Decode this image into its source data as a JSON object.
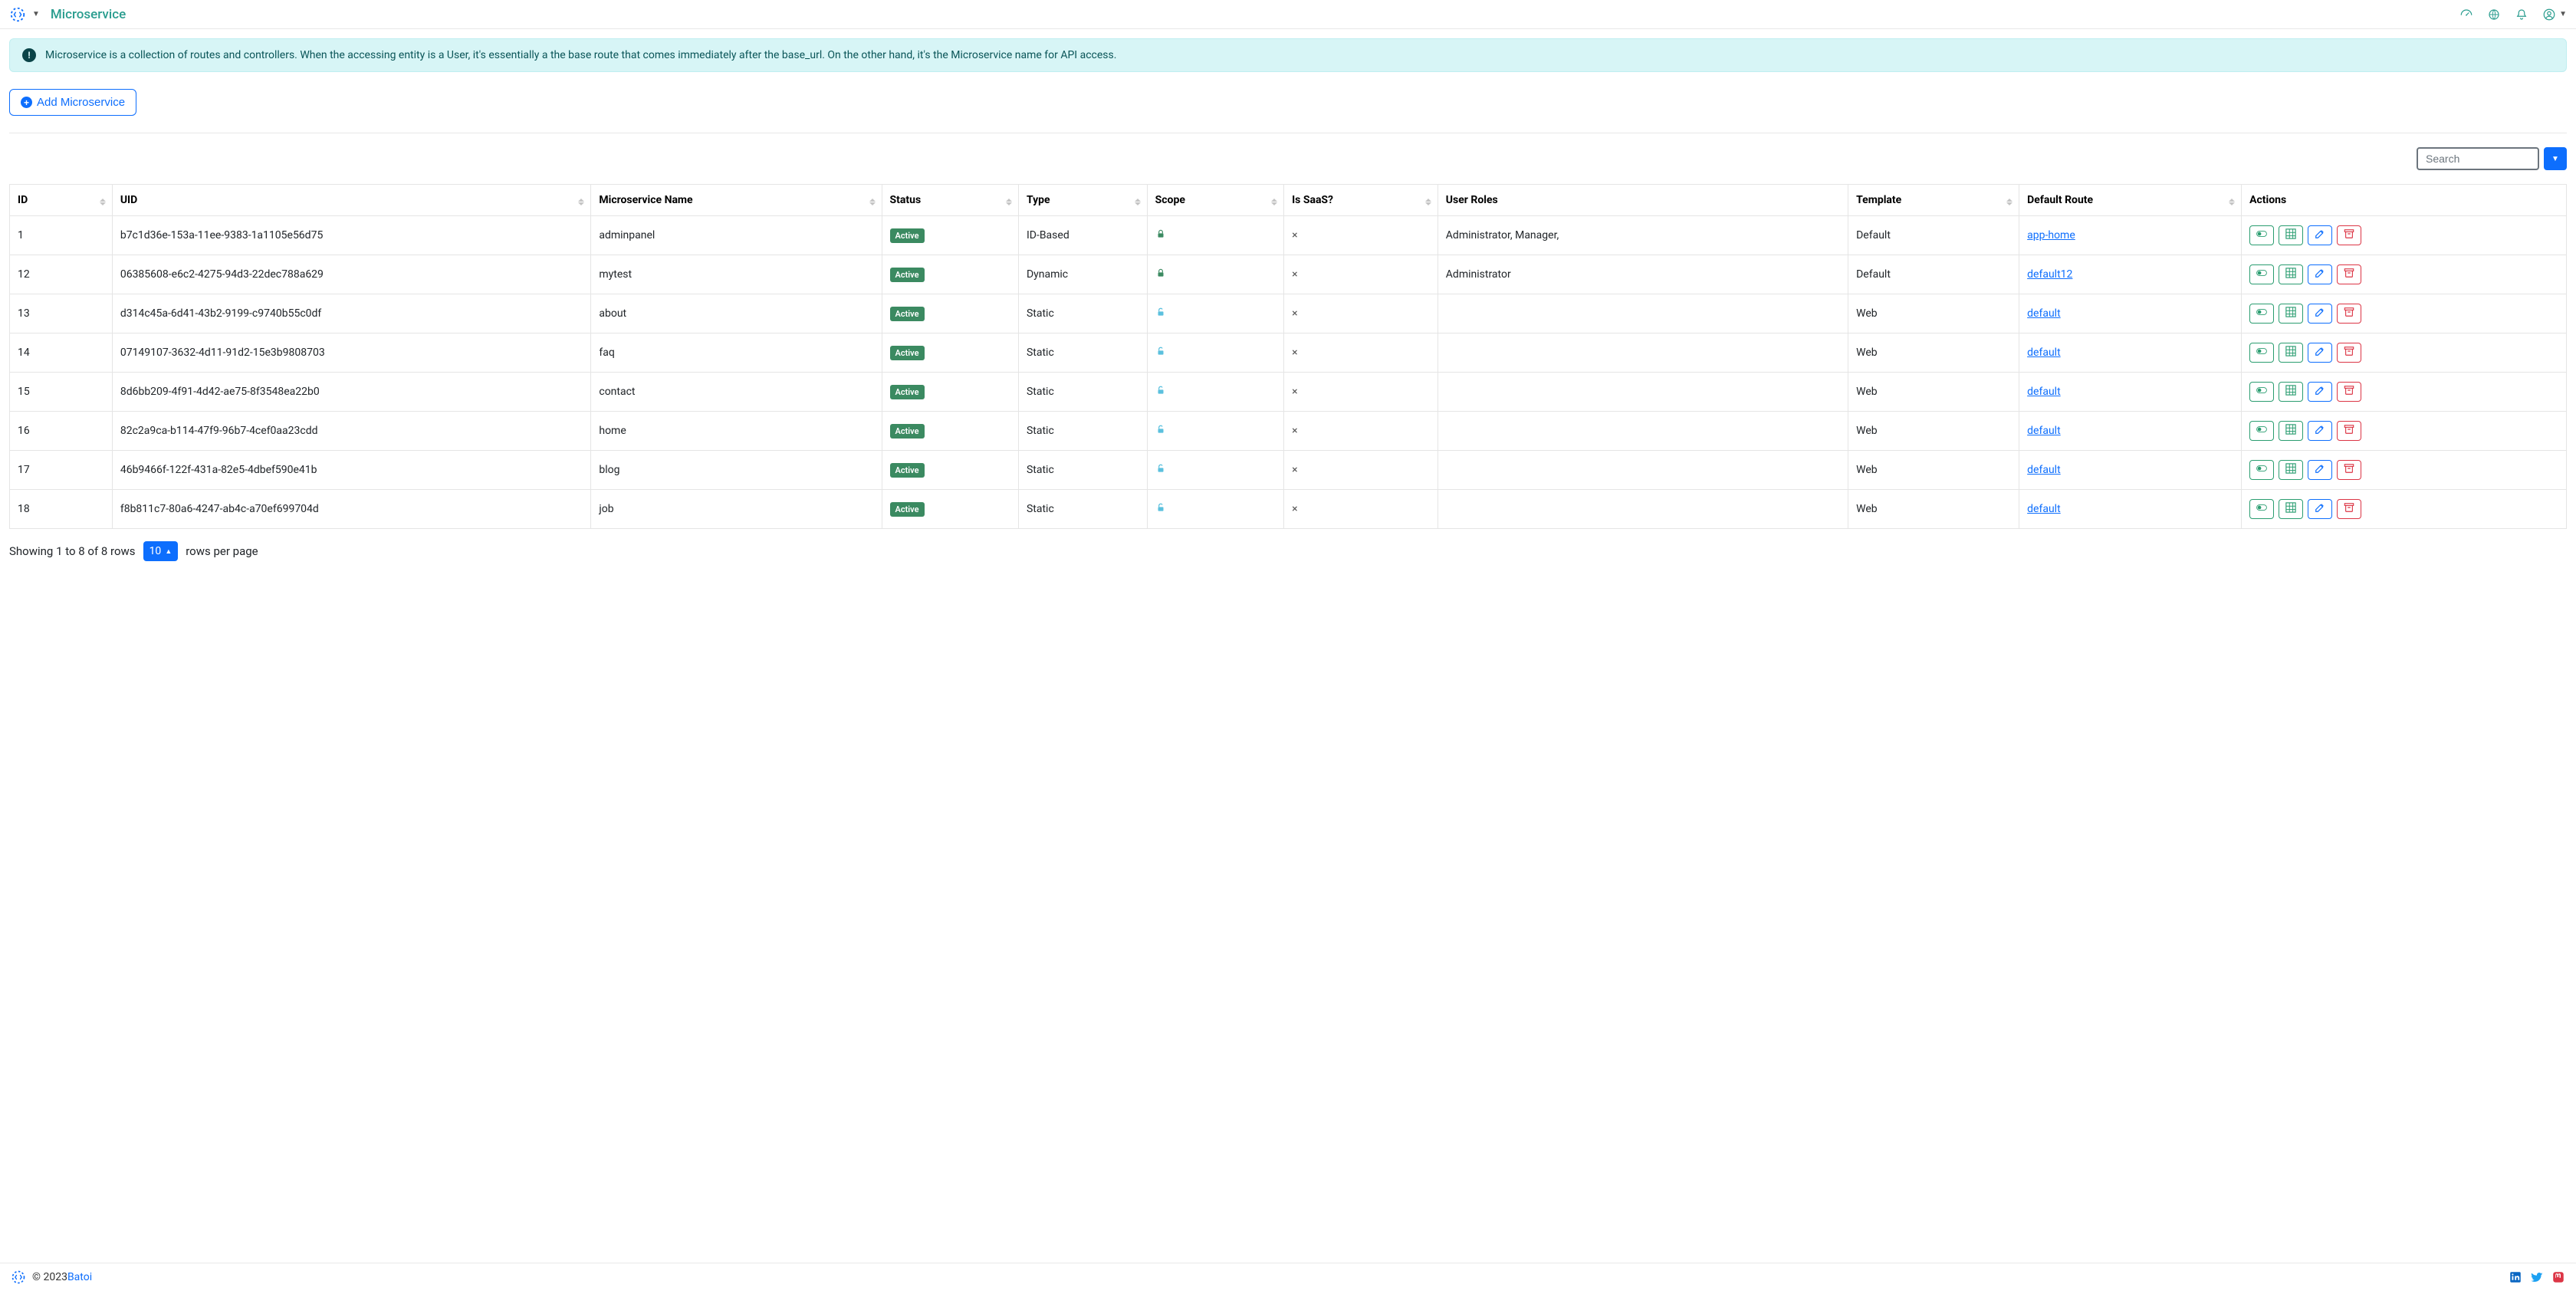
{
  "header": {
    "page_title": "Microservice"
  },
  "alert": {
    "text": "Microservice is a collection of routes and controllers. When the accessing entity is a User, it's essentially a the base route that comes immediately after the base_url. On the other hand, it's the Microservice name for API access."
  },
  "add_button": {
    "label": "Add Microservice"
  },
  "search": {
    "placeholder": "Search"
  },
  "table": {
    "columns": {
      "id": "ID",
      "uid": "UID",
      "name": "Microservice Name",
      "status": "Status",
      "type": "Type",
      "scope": "Scope",
      "saas": "Is SaaS?",
      "roles": "User Roles",
      "template": "Template",
      "route": "Default Route",
      "actions": "Actions"
    },
    "status_badge": "Active",
    "rows": [
      {
        "id": "1",
        "uid": "b7c1d36e-153a-11ee-9383-1a1105e56d75",
        "name": "adminpanel",
        "type": "ID-Based",
        "scope_locked": true,
        "saas_x": true,
        "roles": "Administrator, Manager,",
        "template": "Default",
        "route": "app-home"
      },
      {
        "id": "12",
        "uid": "06385608-e6c2-4275-94d3-22dec788a629",
        "name": "mytest",
        "type": "Dynamic",
        "scope_locked": true,
        "saas_x": true,
        "roles": "Administrator",
        "template": "Default",
        "route": "default12"
      },
      {
        "id": "13",
        "uid": "d314c45a-6d41-43b2-9199-c9740b55c0df",
        "name": "about",
        "type": "Static",
        "scope_locked": false,
        "saas_x": true,
        "roles": "",
        "template": "Web",
        "route": "default"
      },
      {
        "id": "14",
        "uid": "07149107-3632-4d11-91d2-15e3b9808703",
        "name": "faq",
        "type": "Static",
        "scope_locked": false,
        "saas_x": true,
        "roles": "",
        "template": "Web",
        "route": "default"
      },
      {
        "id": "15",
        "uid": "8d6bb209-4f91-4d42-ae75-8f3548ea22b0",
        "name": "contact",
        "type": "Static",
        "scope_locked": false,
        "saas_x": true,
        "roles": "",
        "template": "Web",
        "route": "default"
      },
      {
        "id": "16",
        "uid": "82c2a9ca-b114-47f9-96b7-4cef0aa23cdd",
        "name": "home",
        "type": "Static",
        "scope_locked": false,
        "saas_x": true,
        "roles": "",
        "template": "Web",
        "route": "default"
      },
      {
        "id": "17",
        "uid": "46b9466f-122f-431a-82e5-4dbef590e41b",
        "name": "blog",
        "type": "Static",
        "scope_locked": false,
        "saas_x": true,
        "roles": "",
        "template": "Web",
        "route": "default"
      },
      {
        "id": "18",
        "uid": "f8b811c7-80a6-4247-ab4c-a70ef699704d",
        "name": "job",
        "type": "Static",
        "scope_locked": false,
        "saas_x": true,
        "roles": "",
        "template": "Web",
        "route": "default"
      }
    ]
  },
  "pagination": {
    "showing_text": "Showing 1 to 8 of 8 rows",
    "page_size": "10",
    "per_page_text": "rows per page"
  },
  "footer": {
    "copyright_prefix": "© 2023 ",
    "brand_link": "Batoi"
  },
  "colors": {
    "teal": "#2a9d8f",
    "primary": "#0d6efd",
    "green": "#3b8a61",
    "danger": "#dc3545",
    "info_bg": "#d7f5f6",
    "border": "#e5e5e5"
  }
}
